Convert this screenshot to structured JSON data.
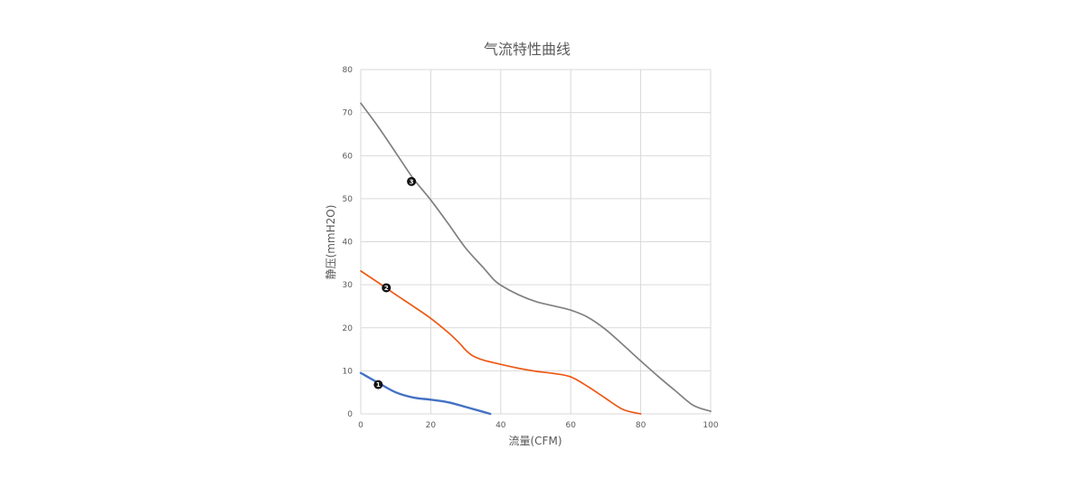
{
  "chart_data": {
    "type": "line",
    "title": "气流特性曲线",
    "xlabel": "流量(CFM)",
    "ylabel": "静压(mmH2O)",
    "xlim": [
      0,
      100
    ],
    "ylim": [
      0,
      80
    ],
    "xticks": [
      0,
      20,
      40,
      60,
      80,
      100
    ],
    "yticks": [
      0,
      10,
      20,
      30,
      40,
      50,
      60,
      70,
      80
    ],
    "grid": true,
    "colors": {
      "grid": "#d9d9d9",
      "axis_text": "#595959",
      "title": "#595959",
      "marker": "#111111",
      "marker_text": "#ffffff"
    },
    "series": [
      {
        "marker_label": "1",
        "color": "#4472c4",
        "line_width": 2.4,
        "marker_at": [
          5,
          6.8
        ],
        "points": [
          [
            0,
            9.5
          ],
          [
            5,
            7.2
          ],
          [
            10,
            5.0
          ],
          [
            15,
            3.8
          ],
          [
            20,
            3.3
          ],
          [
            25,
            2.7
          ],
          [
            30,
            1.6
          ],
          [
            34,
            0.7
          ],
          [
            37,
            0
          ]
        ]
      },
      {
        "marker_label": "2",
        "color": "#ed5915",
        "line_width": 1.7,
        "marker_at": [
          7.3,
          29.3
        ],
        "points": [
          [
            0,
            33.2
          ],
          [
            5,
            30.5
          ],
          [
            10,
            27.7
          ],
          [
            15,
            25.0
          ],
          [
            20,
            22.2
          ],
          [
            25,
            18.9
          ],
          [
            28,
            16.6
          ],
          [
            30,
            14.8
          ],
          [
            32,
            13.5
          ],
          [
            35,
            12.5
          ],
          [
            40,
            11.5
          ],
          [
            45,
            10.6
          ],
          [
            50,
            9.9
          ],
          [
            55,
            9.4
          ],
          [
            60,
            8.6
          ],
          [
            65,
            6.3
          ],
          [
            70,
            3.6
          ],
          [
            75,
            1.0
          ],
          [
            80,
            0
          ]
        ]
      },
      {
        "marker_label": "3",
        "color": "#808080",
        "line_width": 1.7,
        "marker_at": [
          14.5,
          54
        ],
        "points": [
          [
            0,
            72.2
          ],
          [
            5,
            66.7
          ],
          [
            10,
            60.7
          ],
          [
            15,
            54.7
          ],
          [
            20,
            49.7
          ],
          [
            25,
            44.2
          ],
          [
            30,
            38.5
          ],
          [
            35,
            34.0
          ],
          [
            38,
            31.2
          ],
          [
            40,
            29.9
          ],
          [
            45,
            27.7
          ],
          [
            50,
            26.1
          ],
          [
            55,
            25.1
          ],
          [
            60,
            24.1
          ],
          [
            65,
            22.4
          ],
          [
            70,
            19.6
          ],
          [
            75,
            16.0
          ],
          [
            80,
            12.3
          ],
          [
            85,
            8.7
          ],
          [
            90,
            5.3
          ],
          [
            95,
            2.0
          ],
          [
            100,
            0.6
          ]
        ]
      }
    ]
  }
}
